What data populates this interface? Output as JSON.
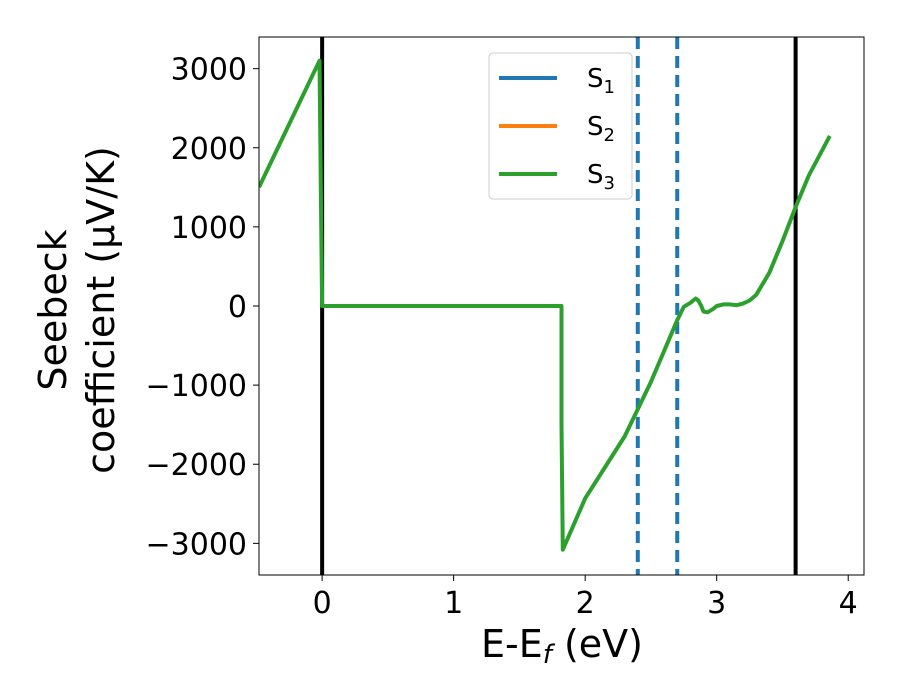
{
  "chart_data": {
    "type": "line",
    "xlabel_main": "E-E",
    "xlabel_sub": "f",
    "xlabel_tail": " (eV)",
    "ylabel_line1": "Seebeck",
    "ylabel_line2": "coefficient  (μV/K)",
    "xlim": [
      -0.48,
      4.12
    ],
    "ylim": [
      -3400,
      3400
    ],
    "xticks": [
      0,
      1,
      2,
      3,
      4
    ],
    "xtick_labels": [
      "0",
      "1",
      "2",
      "3",
      "4"
    ],
    "yticks": [
      3000,
      2000,
      1000,
      0,
      -1000,
      -2000,
      -3000
    ],
    "ytick_labels": [
      "3000",
      "2000",
      "1000",
      "0",
      "−1000",
      "−2000",
      "−3000"
    ],
    "legend_position": "top-center",
    "series": [
      {
        "name_main": "S",
        "name_sub": "1",
        "color": "#1f77b4",
        "x": [],
        "y": []
      },
      {
        "name_main": "S",
        "name_sub": "2",
        "color": "#ff7f0e",
        "x": [],
        "y": []
      },
      {
        "name_main": "S",
        "name_sub": "3",
        "color": "#2ca02c",
        "x": [
          -0.48,
          -0.02,
          -0.01,
          0.0,
          1.0,
          1.82,
          1.82,
          1.83,
          2.0,
          2.3,
          2.5,
          2.7,
          2.75,
          2.8,
          2.84,
          2.86,
          2.88,
          2.9,
          2.93,
          2.97,
          3.0,
          3.05,
          3.1,
          3.15,
          3.2,
          3.25,
          3.3,
          3.4,
          3.5,
          3.6,
          3.7,
          3.86
        ],
        "y": [
          1500,
          3100,
          1500,
          0,
          0,
          0,
          -1500,
          -3080,
          -2430,
          -1650,
          -960,
          -180,
          -10,
          40,
          95,
          70,
          10,
          -70,
          -80,
          -40,
          0,
          20,
          20,
          10,
          30,
          70,
          140,
          420,
          820,
          1250,
          1650,
          2150
        ]
      }
    ],
    "vlines_solid": [
      0.0,
      3.6
    ],
    "vlines_dashed": [
      2.4,
      2.7
    ],
    "vline_solid_color": "#000000",
    "vline_dashed_color": "#1f77b4"
  }
}
